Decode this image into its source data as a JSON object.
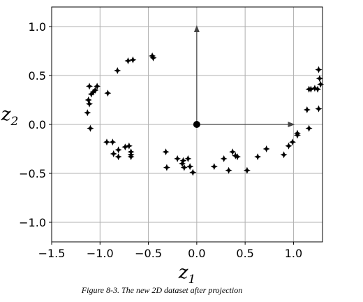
{
  "caption": "Figure 8-3. The new 2D dataset after projection",
  "chart_data": {
    "type": "scatter",
    "title": "",
    "xlabel": "z",
    "xlabel_sub": "1",
    "ylabel": "z",
    "ylabel_sub": "2",
    "xlim": [
      -1.5,
      1.3
    ],
    "ylim": [
      -1.2,
      1.2
    ],
    "xticks": [
      -1.5,
      -1.0,
      -0.5,
      0.0,
      0.5,
      1.0
    ],
    "xtick_labels": [
      "−1.5",
      "−1.0",
      "−0.5",
      "0.0",
      "0.5",
      "1.0"
    ],
    "yticks": [
      -1.0,
      -0.5,
      0.0,
      0.5,
      1.0
    ],
    "ytick_labels": [
      "−1.0",
      "−0.5",
      "0.0",
      "0.5",
      "1.0"
    ],
    "grid": true,
    "marker_color": "#000000",
    "arrow_color": "#444444",
    "origin_point": [
      0.0,
      0.0
    ],
    "arrows": [
      {
        "from": [
          0.0,
          0.0
        ],
        "to": [
          0.0,
          1.0
        ]
      },
      {
        "from": [
          0.0,
          0.0
        ],
        "to": [
          1.0,
          0.0
        ]
      }
    ],
    "points": [
      [
        -1.11,
        0.39
      ],
      [
        -1.09,
        0.31
      ],
      [
        -1.07,
        0.33
      ],
      [
        -1.05,
        0.35
      ],
      [
        -1.03,
        0.39
      ],
      [
        -1.12,
        0.25
      ],
      [
        -1.11,
        0.21
      ],
      [
        -1.13,
        0.12
      ],
      [
        -1.1,
        -0.04
      ],
      [
        -0.92,
        0.32
      ],
      [
        -0.82,
        0.55
      ],
      [
        -0.71,
        0.65
      ],
      [
        -0.66,
        0.66
      ],
      [
        -0.46,
        0.7
      ],
      [
        -0.45,
        0.68
      ],
      [
        -0.93,
        -0.18
      ],
      [
        -0.87,
        -0.18
      ],
      [
        -0.86,
        -0.3
      ],
      [
        -0.81,
        -0.26
      ],
      [
        -0.81,
        -0.33
      ],
      [
        -0.74,
        -0.23
      ],
      [
        -0.7,
        -0.22
      ],
      [
        -0.68,
        -0.28
      ],
      [
        -0.68,
        -0.31
      ],
      [
        -0.68,
        -0.33
      ],
      [
        -0.32,
        -0.28
      ],
      [
        -0.31,
        -0.44
      ],
      [
        -0.2,
        -0.35
      ],
      [
        -0.15,
        -0.4
      ],
      [
        -0.14,
        -0.37
      ],
      [
        -0.13,
        -0.44
      ],
      [
        -0.09,
        -0.35
      ],
      [
        -0.07,
        -0.43
      ],
      [
        -0.04,
        -0.49
      ],
      [
        0.18,
        -0.43
      ],
      [
        0.28,
        -0.35
      ],
      [
        0.33,
        -0.47
      ],
      [
        0.37,
        -0.28
      ],
      [
        0.4,
        -0.32
      ],
      [
        0.42,
        -0.33
      ],
      [
        0.52,
        -0.47
      ],
      [
        0.63,
        -0.33
      ],
      [
        0.72,
        -0.25
      ],
      [
        0.9,
        -0.31
      ],
      [
        0.95,
        -0.22
      ],
      [
        0.99,
        -0.18
      ],
      [
        1.04,
        -0.11
      ],
      [
        1.04,
        -0.09
      ],
      [
        1.16,
        -0.04
      ],
      [
        1.14,
        0.15
      ],
      [
        1.16,
        0.36
      ],
      [
        1.18,
        0.36
      ],
      [
        1.22,
        0.37
      ],
      [
        1.25,
        0.36
      ],
      [
        1.26,
        0.56
      ],
      [
        1.27,
        0.47
      ],
      [
        1.28,
        0.41
      ],
      [
        1.26,
        0.16
      ]
    ]
  }
}
